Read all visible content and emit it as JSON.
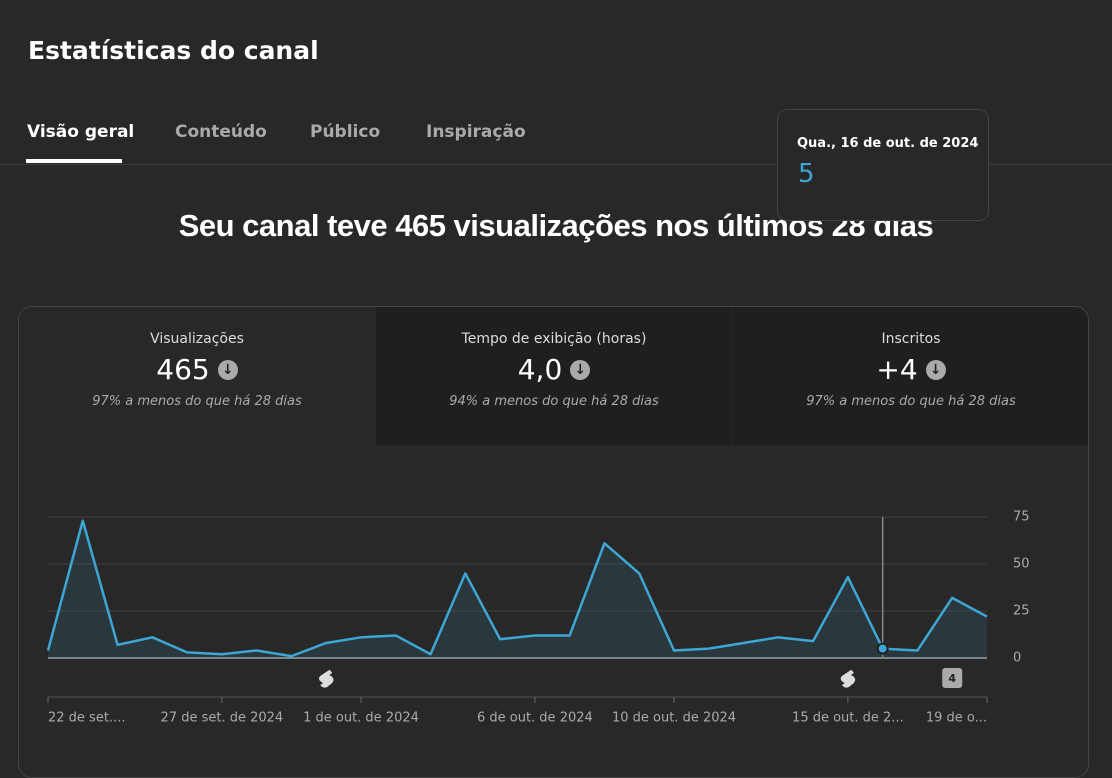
{
  "header": {
    "title": "Estatísticas do canal"
  },
  "tabs": [
    "Visão geral",
    "Conteúdo",
    "Público",
    "Inspiração"
  ],
  "headline": "Seu canal teve 465 visualizações nos últimos 28 dias",
  "metrics": [
    {
      "label": "Visualizações",
      "value": "465",
      "note": "97% a menos do que há 28 dias"
    },
    {
      "label": "Tempo de exibição (horas)",
      "value": "4,0",
      "note": "94% a menos do que há 28 dias"
    },
    {
      "label": "Inscritos",
      "value": "+4",
      "note": "97% a menos do que há 28 dias"
    }
  ],
  "chart_data": {
    "type": "line",
    "categories": [
      "22 de set....",
      null,
      null,
      null,
      null,
      "27 de set. de 2024",
      null,
      null,
      null,
      "1 de out. de 2024",
      null,
      null,
      null,
      null,
      "6 de out. de 2024",
      null,
      null,
      null,
      "10 de out. de 2024",
      null,
      null,
      null,
      null,
      "15 de out. de 2...",
      null,
      null,
      null,
      "19 de o..."
    ],
    "series": [
      {
        "name": "Visualizações",
        "color": "#3ea6d4",
        "values": [
          4,
          73,
          7,
          11,
          3,
          2,
          4,
          1,
          8,
          11,
          12,
          2,
          45,
          10,
          12,
          12,
          61,
          45,
          4,
          5,
          8,
          11,
          9,
          43,
          5,
          4,
          32,
          22
        ]
      }
    ],
    "ylim": [
      0,
      75
    ],
    "yticks": [
      0,
      25,
      50,
      75
    ],
    "grid": true,
    "hover_index": 24,
    "tooltip": {
      "date": "Qua., 16 de out. de 2024"
    },
    "shorts_markers": [
      8,
      23
    ],
    "badge": {
      "at": 26,
      "count": 4
    }
  }
}
